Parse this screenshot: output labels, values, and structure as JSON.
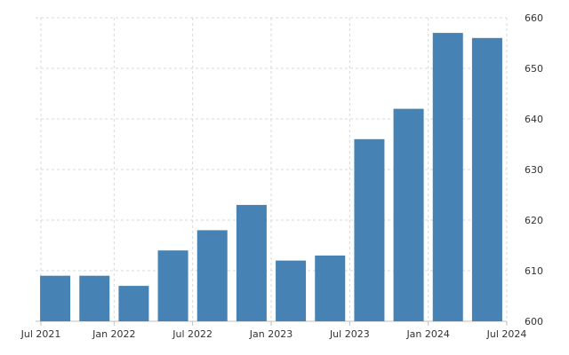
{
  "chart_data": {
    "type": "bar",
    "title": "",
    "xlabel": "",
    "ylabel": "",
    "ylim": [
      600,
      660
    ],
    "yticks": [
      600,
      610,
      620,
      630,
      640,
      650,
      660
    ],
    "x_tick_labels": [
      "Jul 2021",
      "Jan 2022",
      "Jul 2022",
      "Jan 2023",
      "Jul 2023",
      "Jan 2024",
      "Jul 2024"
    ],
    "grid": true,
    "y_axis_side": "right",
    "bar_color": "#4682b4",
    "series": [
      {
        "values": [
          609,
          609,
          607,
          614,
          618,
          623,
          612,
          613,
          636,
          642,
          657,
          656
        ]
      }
    ]
  }
}
